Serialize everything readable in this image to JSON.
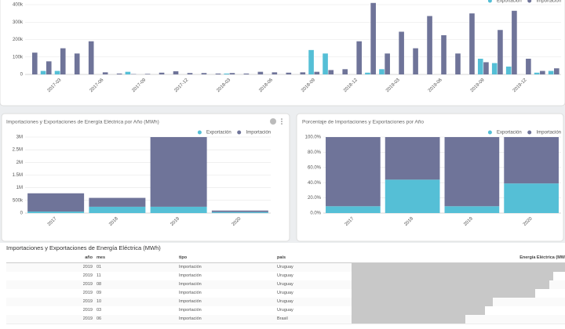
{
  "chart_data": [
    {
      "type": "bar",
      "categories": [
        null,
        null,
        "2017-03",
        null,
        null,
        "2017-06",
        null,
        null,
        "2017-09",
        null,
        null,
        "2017-12",
        null,
        null,
        "2018-03",
        null,
        null,
        "2018-06",
        null,
        null,
        "2018-09",
        null,
        null,
        "2018-12",
        null,
        null,
        "2019-03",
        null,
        null,
        "2019-06",
        null,
        null,
        "2019-09",
        null,
        null,
        "2019-12",
        null,
        null
      ],
      "series": [
        {
          "name": "Exportación",
          "color": "#55bfd6",
          "values": [
            0,
            20000,
            20000,
            0,
            0,
            0,
            0,
            15000,
            0,
            0,
            0,
            0,
            0,
            0,
            5000,
            0,
            0,
            0,
            0,
            0,
            140000,
            120000,
            0,
            0,
            10000,
            30000,
            0,
            0,
            0,
            0,
            0,
            0,
            90000,
            65000,
            45000,
            0,
            10000,
            20000
          ]
        },
        {
          "name": "Importación",
          "color": "#6f7499",
          "values": [
            125000,
            75000,
            150000,
            120000,
            190000,
            12000,
            5000,
            2000,
            3000,
            10000,
            18000,
            8000,
            8000,
            5000,
            8000,
            5000,
            15000,
            12000,
            10000,
            12000,
            15000,
            25000,
            30000,
            190000,
            410000,
            120000,
            245000,
            150000,
            335000,
            225000,
            120000,
            350000,
            70000,
            255000,
            365000,
            90000,
            20000,
            35000
          ]
        }
      ],
      "ylim": [
        0,
        400000
      ],
      "yticks": [
        0,
        {
          "value": 100000,
          "label": "100k"
        },
        {
          "value": 200000,
          "label": "200k"
        },
        {
          "value": 300000,
          "label": "300k"
        },
        {
          "value": 400000,
          "label": "400k"
        }
      ],
      "grid": true
    },
    {
      "type": "stacked_bar",
      "title": "Importaciones y Exportaciones de Energía Eléctrica por Año (MWh)",
      "categories": [
        "2017",
        "2018",
        "2019",
        "2020"
      ],
      "series": [
        {
          "name": "Exportación",
          "color": "#55bfd6",
          "values": [
            60000,
            250000,
            250000,
            40000
          ]
        },
        {
          "name": "Importación",
          "color": "#6f7499",
          "values": [
            720000,
            350000,
            2750000,
            60000
          ]
        }
      ],
      "ylim": [
        0,
        3000000
      ],
      "yticks": [
        0,
        {
          "value": 500000,
          "label": "500k"
        },
        {
          "value": 1000000,
          "label": "1M"
        },
        {
          "value": 1500000,
          "label": "1.5M"
        },
        {
          "value": 2000000,
          "label": "2M"
        },
        {
          "value": 2500000,
          "label": "2.5M"
        },
        {
          "value": 3000000,
          "label": "3M"
        }
      ],
      "grid": true
    },
    {
      "type": "stacked_bar",
      "title": "Porcentaje de Importaciones y Exportaciones por Año",
      "categories": [
        "2017",
        "2018",
        "2019",
        "2020"
      ],
      "series": [
        {
          "name": "Exportación",
          "color": "#55bfd6",
          "values": [
            9,
            44,
            9,
            39
          ]
        },
        {
          "name": "Importación",
          "color": "#6f7499",
          "values": [
            91,
            56,
            91,
            61
          ]
        }
      ],
      "ylim": [
        0,
        100
      ],
      "yticks": [
        {
          "value": 0,
          "label": "0.0%"
        },
        {
          "value": 20,
          "label": "20.0%"
        },
        {
          "value": 40,
          "label": "40.0%"
        },
        {
          "value": 60,
          "label": "60.0%"
        },
        {
          "value": 80,
          "label": "80.0%"
        },
        {
          "value": 100,
          "label": "100.0%"
        }
      ],
      "grid": true
    }
  ],
  "table": {
    "title": "Importaciones y Exportaciones de Energía Eléctrica (MWh)",
    "columns": [
      "año",
      "mes",
      "tipo",
      "país",
      "Energía Eléctrica (MW"
    ],
    "rows": [
      [
        2019,
        "01",
        "Importación",
        "Uruguay",
        410000
      ],
      [
        2019,
        "11",
        "Importación",
        "Uruguay",
        388000
      ],
      [
        2019,
        "08",
        "Importación",
        "Uruguay",
        380000
      ],
      [
        2019,
        "09",
        "Importación",
        "Uruguay",
        352000
      ],
      [
        2019,
        "10",
        "Importación",
        "Uruguay",
        271000
      ],
      [
        2019,
        "03",
        "Importación",
        "Uruguay",
        256000
      ],
      [
        2019,
        "06",
        "Importación",
        "Brasil",
        218000
      ]
    ]
  }
}
